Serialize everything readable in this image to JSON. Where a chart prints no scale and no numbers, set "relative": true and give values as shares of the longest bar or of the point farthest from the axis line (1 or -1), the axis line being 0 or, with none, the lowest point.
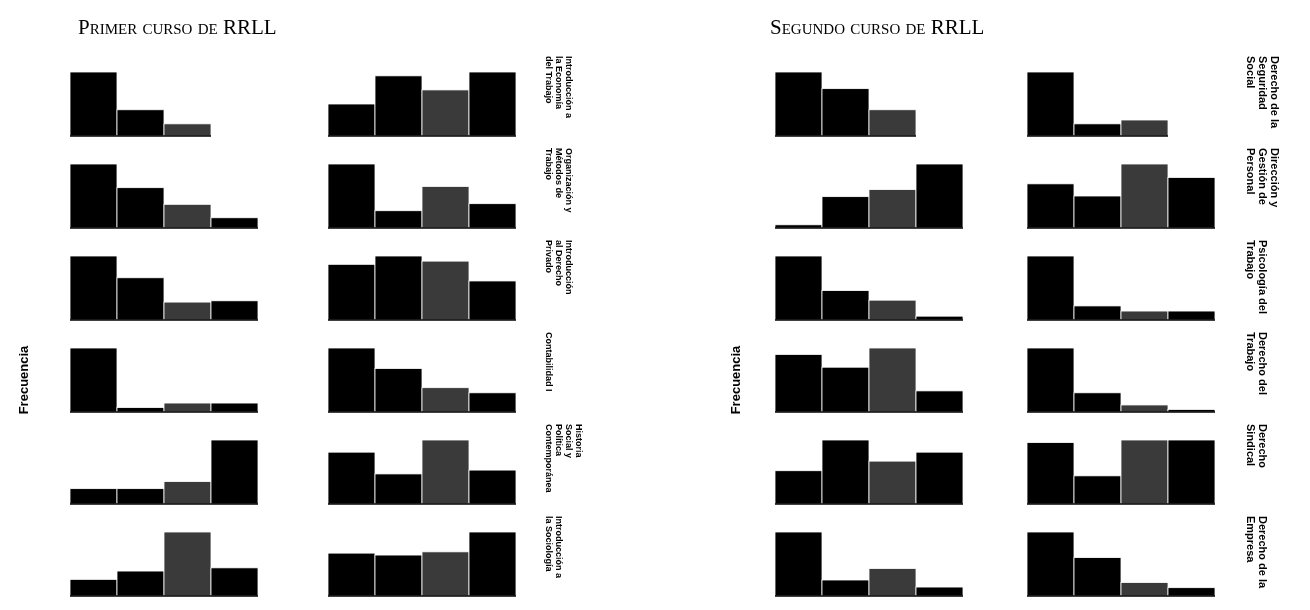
{
  "chart_data": [
    {
      "type": "bar",
      "relative": true,
      "title": "Primer curso de RRLL",
      "categories": [
        null,
        null,
        null
      ],
      "values": [
        1,
        0.41,
        0.19
      ],
      "colors": [
        "#000000",
        "#000000",
        "#3a3a3a"
      ]
    },
    {
      "type": "bar",
      "relative": true,
      "y2label": "Introducción a la Economía del Trabajo",
      "categories": [
        null,
        null,
        null,
        null
      ],
      "values": [
        0.5,
        0.94,
        0.72,
        1
      ],
      "colors": [
        "#000000",
        "#000000",
        "#3a3a3a",
        "#000000"
      ]
    },
    {
      "type": "bar",
      "relative": true,
      "categories": [
        null,
        null,
        null,
        null
      ],
      "values": [
        1,
        0.63,
        0.37,
        0.16
      ],
      "colors": [
        "#000000",
        "#000000",
        "#3a3a3a",
        "#000000"
      ]
    },
    {
      "type": "bar",
      "relative": true,
      "y2label": "Organización y Métodos de Trabajo",
      "categories": [
        null,
        null,
        null,
        null
      ],
      "values": [
        1,
        0.27,
        0.65,
        0.38
      ],
      "colors": [
        "#000000",
        "#000000",
        "#3a3a3a",
        "#000000"
      ]
    },
    {
      "type": "bar",
      "relative": true,
      "categories": [
        null,
        null,
        null,
        null
      ],
      "values": [
        1,
        0.66,
        0.28,
        0.3
      ],
      "colors": [
        "#000000",
        "#000000",
        "#3a3a3a",
        "#000000"
      ]
    },
    {
      "type": "bar",
      "relative": true,
      "y2label": "Introducción al Derecho Privado",
      "categories": [
        null,
        null,
        null,
        null
      ],
      "values": [
        0.87,
        1,
        0.92,
        0.61
      ],
      "colors": [
        "#000000",
        "#000000",
        "#3a3a3a",
        "#000000"
      ]
    },
    {
      "type": "bar",
      "relative": true,
      "ylabel": "Frecuencia",
      "categories": [
        null,
        null,
        null,
        null
      ],
      "values": [
        1,
        0.07,
        0.14,
        0.14
      ],
      "colors": [
        "#000000",
        "#000000",
        "#3a3a3a",
        "#000000"
      ]
    },
    {
      "type": "bar",
      "relative": true,
      "y2label": "Contabilidad I",
      "categories": [
        null,
        null,
        null,
        null
      ],
      "values": [
        1,
        0.68,
        0.38,
        0.3
      ],
      "colors": [
        "#000000",
        "#000000",
        "#3a3a3a",
        "#000000"
      ]
    },
    {
      "type": "bar",
      "relative": true,
      "categories": [
        null,
        null,
        null,
        null
      ],
      "values": [
        0.24,
        0.24,
        0.35,
        1
      ],
      "colors": [
        "#000000",
        "#000000",
        "#3a3a3a",
        "#000000"
      ]
    },
    {
      "type": "bar",
      "relative": true,
      "y2label": "Historia Social y Política Contemporánea",
      "categories": [
        null,
        null,
        null,
        null
      ],
      "values": [
        0.81,
        0.47,
        1,
        0.53
      ],
      "colors": [
        "#000000",
        "#000000",
        "#3a3a3a",
        "#000000"
      ]
    },
    {
      "type": "bar",
      "relative": true,
      "categories": [
        null,
        null,
        null,
        null
      ],
      "values": [
        0.26,
        0.39,
        1,
        0.44
      ],
      "colors": [
        "#000000",
        "#000000",
        "#3a3a3a",
        "#000000"
      ]
    },
    {
      "type": "bar",
      "relative": true,
      "y2label": "Introducción a la Sociología",
      "categories": [
        null,
        null,
        null,
        null
      ],
      "values": [
        0.67,
        0.64,
        0.69,
        1
      ],
      "colors": [
        "#000000",
        "#000000",
        "#3a3a3a",
        "#000000"
      ]
    },
    {
      "type": "bar",
      "relative": true,
      "title": "Segundo curso de RRLL",
      "categories": [
        null,
        null,
        null
      ],
      "values": [
        1,
        0.74,
        0.41
      ],
      "colors": [
        "#000000",
        "#000000",
        "#3a3a3a"
      ]
    },
    {
      "type": "bar",
      "relative": true,
      "y2label": "Derecho de la Seguridad Social",
      "categories": [
        null,
        null,
        null
      ],
      "values": [
        1,
        0.19,
        0.25
      ],
      "colors": [
        "#000000",
        "#000000",
        "#3a3a3a"
      ]
    },
    {
      "type": "bar",
      "relative": true,
      "categories": [
        null,
        null,
        null,
        null
      ],
      "values": [
        0.05,
        0.49,
        0.6,
        1
      ],
      "colors": [
        "#000000",
        "#000000",
        "#3a3a3a",
        "#000000"
      ]
    },
    {
      "type": "bar",
      "relative": true,
      "y2label": "Dirección y Gestión de Personal",
      "categories": [
        null,
        null,
        null,
        null
      ],
      "values": [
        0.69,
        0.5,
        1,
        0.79
      ],
      "colors": [
        "#000000",
        "#000000",
        "#3a3a3a",
        "#000000"
      ]
    },
    {
      "type": "bar",
      "relative": true,
      "categories": [
        null,
        null,
        null,
        null
      ],
      "values": [
        1,
        0.46,
        0.31,
        0.06
      ],
      "colors": [
        "#000000",
        "#000000",
        "#3a3a3a",
        "#000000"
      ]
    },
    {
      "type": "bar",
      "relative": true,
      "y2label": "Psicología del Trabajo",
      "categories": [
        null,
        null,
        null,
        null
      ],
      "values": [
        1,
        0.22,
        0.14,
        0.14
      ],
      "colors": [
        "#000000",
        "#000000",
        "#3a3a3a",
        "#000000"
      ]
    },
    {
      "type": "bar",
      "relative": true,
      "ylabel": "Frecuencia",
      "categories": [
        null,
        null,
        null,
        null
      ],
      "values": [
        0.9,
        0.7,
        1,
        0.33
      ],
      "colors": [
        "#000000",
        "#000000",
        "#3a3a3a",
        "#000000"
      ]
    },
    {
      "type": "bar",
      "relative": true,
      "y2label": "Derecho del Trabajo",
      "categories": [
        null,
        null,
        null,
        null
      ],
      "values": [
        1,
        0.3,
        0.11,
        0.04
      ],
      "colors": [
        "#000000",
        "#000000",
        "#3a3a3a",
        "#000000"
      ]
    },
    {
      "type": "bar",
      "relative": true,
      "categories": [
        null,
        null,
        null,
        null
      ],
      "values": [
        0.52,
        1,
        0.67,
        0.81
      ],
      "colors": [
        "#000000",
        "#000000",
        "#3a3a3a",
        "#000000"
      ]
    },
    {
      "type": "bar",
      "relative": true,
      "y2label": "Derecho Sindical",
      "categories": [
        null,
        null,
        null,
        null
      ],
      "values": [
        0.96,
        0.44,
        1,
        1
      ],
      "colors": [
        "#000000",
        "#000000",
        "#3a3a3a",
        "#000000"
      ]
    },
    {
      "type": "bar",
      "relative": true,
      "categories": [
        null,
        null,
        null,
        null
      ],
      "values": [
        1,
        0.25,
        0.43,
        0.14
      ],
      "colors": [
        "#000000",
        "#000000",
        "#3a3a3a",
        "#000000"
      ]
    },
    {
      "type": "bar",
      "relative": true,
      "y2label": "Derecho de la Empresa",
      "categories": [
        null,
        null,
        null,
        null
      ],
      "values": [
        1,
        0.6,
        0.21,
        0.13
      ],
      "colors": [
        "#000000",
        "#000000",
        "#3a3a3a",
        "#000000"
      ]
    }
  ]
}
